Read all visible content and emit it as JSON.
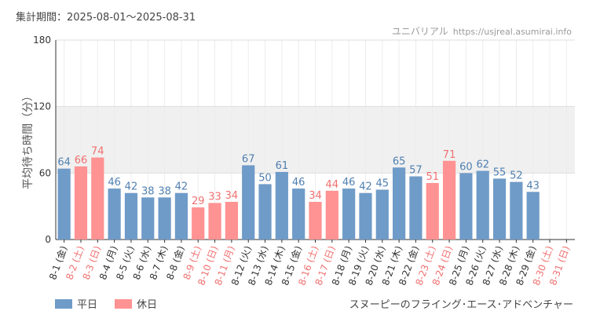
{
  "header": {
    "period_label": "集計期間：2025-08-01〜2025-08-31",
    "site_name": "ユニバリアル",
    "site_url": "https://usjreal.asumirai.info"
  },
  "footer": {
    "attraction_name": "スヌーピーのフライング･エース･アドベンチャー"
  },
  "colors": {
    "weekday": "#6f9bc8",
    "weekday_label": "#4f7fb0",
    "holiday": "#ff9292",
    "holiday_label": "#f07070",
    "band": "#f0f0f0"
  },
  "chart_data": {
    "type": "bar",
    "ylabel": "平均待ち時間（分）",
    "ylim": [
      0,
      180
    ],
    "yticks": [
      0,
      60,
      120,
      180
    ],
    "bands": [
      [
        60,
        120
      ]
    ],
    "legend": [
      {
        "name": "平日",
        "kind": "weekday"
      },
      {
        "name": "休日",
        "kind": "holiday"
      }
    ],
    "legend_position": "bottom-left",
    "categories": [
      "8-1 (金)",
      "8-2 (土)",
      "8-3 (日)",
      "8-4 (月)",
      "8-5 (火)",
      "8-6 (水)",
      "8-7 (木)",
      "8-8 (金)",
      "8-9 (土)",
      "8-10 (日)",
      "8-11 (月)",
      "8-12 (火)",
      "8-13 (水)",
      "8-14 (木)",
      "8-15 (金)",
      "8-16 (土)",
      "8-17 (日)",
      "8-18 (月)",
      "8-19 (火)",
      "8-20 (水)",
      "8-21 (木)",
      "8-22 (金)",
      "8-23 (土)",
      "8-24 (日)",
      "8-25 (月)",
      "8-26 (火)",
      "8-27 (水)",
      "8-28 (木)",
      "8-29 (金)",
      "8-30 (土)",
      "8-31 (日)"
    ],
    "values": [
      64,
      66,
      74,
      46,
      42,
      38,
      38,
      42,
      29,
      33,
      34,
      67,
      50,
      61,
      46,
      34,
      44,
      46,
      42,
      45,
      65,
      57,
      51,
      71,
      60,
      62,
      55,
      52,
      43,
      null,
      null
    ],
    "kinds": [
      "weekday",
      "holiday",
      "holiday",
      "weekday",
      "weekday",
      "weekday",
      "weekday",
      "weekday",
      "holiday",
      "holiday",
      "holiday",
      "weekday",
      "weekday",
      "weekday",
      "weekday",
      "holiday",
      "holiday",
      "weekday",
      "weekday",
      "weekday",
      "weekday",
      "weekday",
      "holiday",
      "holiday",
      "weekday",
      "weekday",
      "weekday",
      "weekday",
      "weekday",
      "holiday",
      "holiday"
    ]
  }
}
